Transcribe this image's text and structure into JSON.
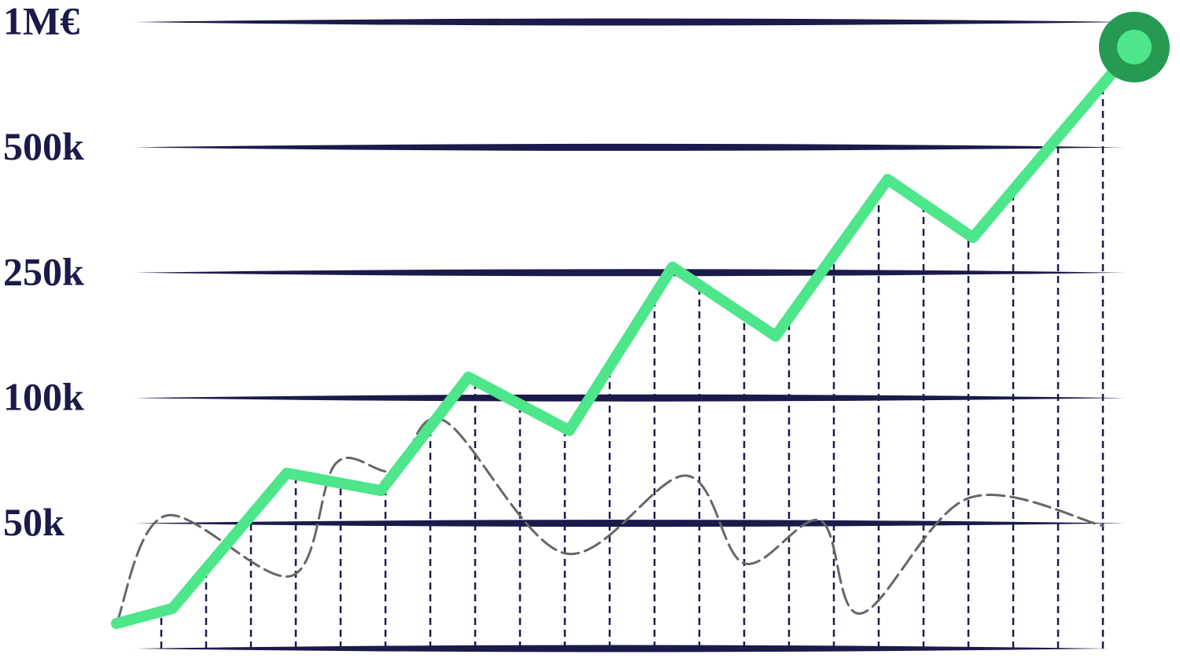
{
  "chart_data": {
    "type": "line",
    "yscale": "even",
    "ylim": [
      0,
      1000000
    ],
    "yticks": [
      {
        "value": 50000,
        "label": "50k"
      },
      {
        "value": 100000,
        "label": "100k"
      },
      {
        "value": 250000,
        "label": "250k"
      },
      {
        "value": 500000,
        "label": "500k"
      },
      {
        "value": 1000000,
        "label": "1M€"
      }
    ],
    "xlim": [
      0,
      23
    ],
    "grid": true,
    "series": [
      {
        "color": "#4de68a",
        "x": [
          0,
          1.25,
          3.8,
          5.9,
          7.85,
          10.1,
          12.4,
          14.7,
          17.2,
          19.1,
          22.7
        ],
        "values": [
          10000,
          16000,
          70000,
          63000,
          125000,
          87000,
          261000,
          174000,
          436000,
          320000,
          900000
        ]
      },
      {
        "color": "#666666",
        "x": [
          0,
          1.1,
          3.9,
          4.9,
          6.2,
          7.3,
          10.0,
          12.7,
          14.0,
          15.7,
          16.6,
          19.0,
          22.0
        ],
        "values": [
          10000,
          53000,
          29000,
          74000,
          71000,
          91000,
          38000,
          69000,
          34000,
          51000,
          14000,
          60000,
          49000
        ]
      }
    ]
  }
}
